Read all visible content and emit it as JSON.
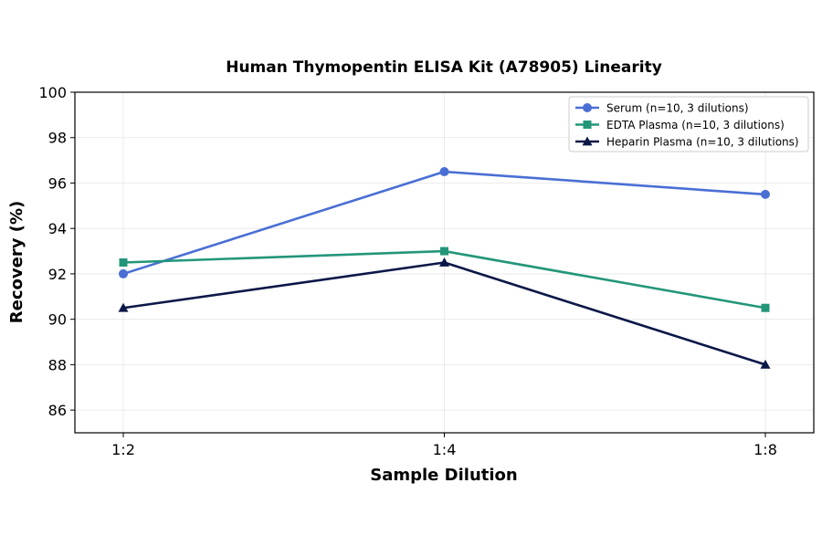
{
  "chart_data": {
    "type": "line",
    "title": "Human Thymopentin ELISA Kit (A78905) Linearity",
    "xlabel": "Sample Dilution",
    "ylabel": "Recovery (%)",
    "categories": [
      "1:2",
      "1:4",
      "1:8"
    ],
    "ylim": [
      85,
      100
    ],
    "yticks": [
      86,
      88,
      90,
      92,
      94,
      96,
      98,
      100
    ],
    "grid": true,
    "legend_position": "top-right",
    "series": [
      {
        "name": "Serum (n=10, 3 dilutions)",
        "values": [
          92.0,
          96.5,
          95.5
        ],
        "color": "#4a6fd4",
        "marker": "circle"
      },
      {
        "name": "EDTA Plasma (n=10, 3 dilutions)",
        "values": [
          92.5,
          93.0,
          90.5
        ],
        "color": "#23967a",
        "marker": "square"
      },
      {
        "name": "Heparin Plasma (n=10, 3 dilutions)",
        "values": [
          90.5,
          92.5,
          88.0
        ],
        "color": "#0b1847",
        "marker": "triangle"
      }
    ]
  }
}
